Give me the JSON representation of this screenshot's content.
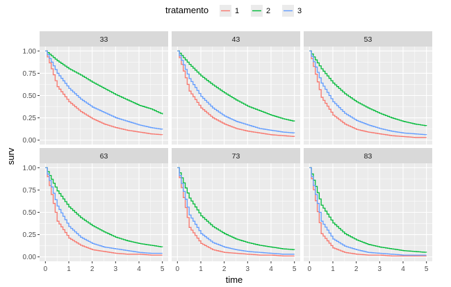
{
  "chart_data": {
    "type": "line",
    "step": true,
    "xlabel": "time",
    "ylabel": "surv",
    "xlim": [
      0,
      5
    ],
    "ylim": [
      0,
      1
    ],
    "x_ticks": [
      0,
      1,
      2,
      3,
      4,
      5
    ],
    "y_ticks": [
      "0.00",
      "0.25",
      "0.50",
      "0.75",
      "1.00"
    ],
    "grid": true,
    "legend": {
      "title": "tratamento",
      "position": "top",
      "entries": [
        {
          "label": "1",
          "color": "#F8766D"
        },
        {
          "label": "2",
          "color": "#00BA38"
        },
        {
          "label": "3",
          "color": "#619CFF"
        }
      ]
    },
    "time_points": [
      0,
      0.5,
      1,
      1.5,
      2,
      2.5,
      3,
      3.5,
      4,
      4.5,
      5
    ],
    "panels": [
      {
        "label": "33",
        "series": [
          {
            "name": "1",
            "values": [
              1.0,
              0.6,
              0.43,
              0.32,
              0.24,
              0.18,
              0.14,
              0.11,
              0.09,
              0.07,
              0.06
            ]
          },
          {
            "name": "2",
            "values": [
              1.0,
              0.89,
              0.8,
              0.73,
              0.65,
              0.58,
              0.51,
              0.45,
              0.39,
              0.35,
              0.29
            ]
          },
          {
            "name": "3",
            "values": [
              1.0,
              0.75,
              0.58,
              0.46,
              0.37,
              0.31,
              0.25,
              0.21,
              0.17,
              0.14,
              0.12
            ]
          }
        ]
      },
      {
        "label": "43",
        "series": [
          {
            "name": "1",
            "values": [
              1.0,
              0.55,
              0.36,
              0.25,
              0.18,
              0.13,
              0.1,
              0.08,
              0.06,
              0.05,
              0.04
            ]
          },
          {
            "name": "2",
            "values": [
              1.0,
              0.85,
              0.72,
              0.62,
              0.53,
              0.45,
              0.38,
              0.33,
              0.28,
              0.24,
              0.21
            ]
          },
          {
            "name": "3",
            "values": [
              1.0,
              0.69,
              0.49,
              0.36,
              0.27,
              0.21,
              0.17,
              0.13,
              0.11,
              0.09,
              0.08
            ]
          }
        ]
      },
      {
        "label": "53",
        "series": [
          {
            "name": "1",
            "values": [
              1.0,
              0.48,
              0.28,
              0.18,
              0.12,
              0.09,
              0.07,
              0.05,
              0.04,
              0.03,
              0.03
            ]
          },
          {
            "name": "2",
            "values": [
              1.0,
              0.8,
              0.64,
              0.52,
              0.43,
              0.36,
              0.3,
              0.25,
              0.21,
              0.18,
              0.16
            ]
          },
          {
            "name": "3",
            "values": [
              1.0,
              0.64,
              0.43,
              0.3,
              0.22,
              0.17,
              0.13,
              0.1,
              0.08,
              0.07,
              0.06
            ]
          }
        ]
      },
      {
        "label": "63",
        "series": [
          {
            "name": "1",
            "values": [
              1.0,
              0.4,
              0.21,
              0.13,
              0.08,
              0.06,
              0.04,
              0.03,
              0.03,
              0.02,
              0.02
            ]
          },
          {
            "name": "2",
            "values": [
              1.0,
              0.74,
              0.56,
              0.44,
              0.35,
              0.28,
              0.22,
              0.18,
              0.15,
              0.13,
              0.11
            ]
          },
          {
            "name": "3",
            "values": [
              1.0,
              0.57,
              0.34,
              0.22,
              0.15,
              0.11,
              0.09,
              0.07,
              0.05,
              0.04,
              0.04
            ]
          }
        ]
      },
      {
        "label": "73",
        "series": [
          {
            "name": "1",
            "values": [
              1.0,
              0.33,
              0.15,
              0.08,
              0.05,
              0.04,
              0.03,
              0.02,
              0.02,
              0.01,
              0.01
            ]
          },
          {
            "name": "2",
            "values": [
              1.0,
              0.66,
              0.46,
              0.34,
              0.26,
              0.2,
              0.16,
              0.13,
              0.11,
              0.09,
              0.08
            ]
          },
          {
            "name": "3",
            "values": [
              1.0,
              0.47,
              0.26,
              0.16,
              0.11,
              0.08,
              0.06,
              0.05,
              0.04,
              0.03,
              0.03
            ]
          }
        ]
      },
      {
        "label": "83",
        "series": [
          {
            "name": "1",
            "values": [
              1.0,
              0.26,
              0.1,
              0.05,
              0.03,
              0.02,
              0.02,
              0.01,
              0.01,
              0.01,
              0.01
            ]
          },
          {
            "name": "2",
            "values": [
              1.0,
              0.58,
              0.38,
              0.26,
              0.19,
              0.14,
              0.11,
              0.09,
              0.07,
              0.06,
              0.05
            ]
          },
          {
            "name": "3",
            "values": [
              1.0,
              0.4,
              0.2,
              0.12,
              0.08,
              0.05,
              0.04,
              0.03,
              0.02,
              0.02,
              0.02
            ]
          }
        ]
      }
    ]
  },
  "colors": {
    "panel_background": "#EBEBEB",
    "grid_major": "#FFFFFF",
    "strip_background": "#D9D9D9",
    "tick_text": "#4D4D4D"
  }
}
